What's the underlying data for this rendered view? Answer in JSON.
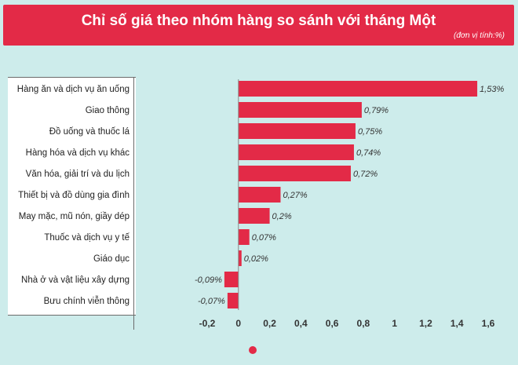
{
  "header": {
    "title": "Chỉ số giá theo nhóm hàng so sánh với tháng Một",
    "unit": "(đơn vị tính:%)"
  },
  "colors": {
    "accent": "#e32a47",
    "background": "#cdeceb",
    "bar": "#e32a47"
  },
  "chart_data": {
    "type": "bar",
    "orientation": "horizontal",
    "title": "Chỉ số giá theo nhóm hàng so sánh với tháng Một",
    "unit": "(đơn vị tính:%)",
    "categories": [
      "Hàng ăn và dịch vụ ăn uống",
      "Giao thông",
      "Đồ uống và thuốc lá",
      "Hàng hóa và dịch vụ khác",
      "Văn hóa, giải trí và du lịch",
      "Thiết bị và đồ dùng gia đình",
      "May mặc, mũ nón, giầy dép",
      "Thuốc và dịch vụ y tế",
      "Giáo dục",
      "Nhà ở và vật liệu xây dựng",
      "Bưu chính viễn thông"
    ],
    "values": [
      1.53,
      0.79,
      0.75,
      0.74,
      0.72,
      0.27,
      0.2,
      0.07,
      0.02,
      -0.09,
      -0.07
    ],
    "value_labels": [
      "1,53%",
      "0,79%",
      "0,75%",
      "0,74%",
      "0,72%",
      "0,27%",
      "0,2%",
      "0,07%",
      "0,02%",
      "-0,09%",
      "-0,07%"
    ],
    "xlim": [
      -0.2,
      1.6
    ],
    "xticks": [
      -0.2,
      0,
      0.2,
      0.4,
      0.6,
      0.8,
      1,
      1.2,
      1.4,
      1.6
    ],
    "xtick_labels": [
      "-0,2",
      "0",
      "0,2",
      "0,4",
      "0,6",
      "0,8",
      "1",
      "1,2",
      "1,4",
      "1,6"
    ],
    "grid": false,
    "legend": "none"
  }
}
